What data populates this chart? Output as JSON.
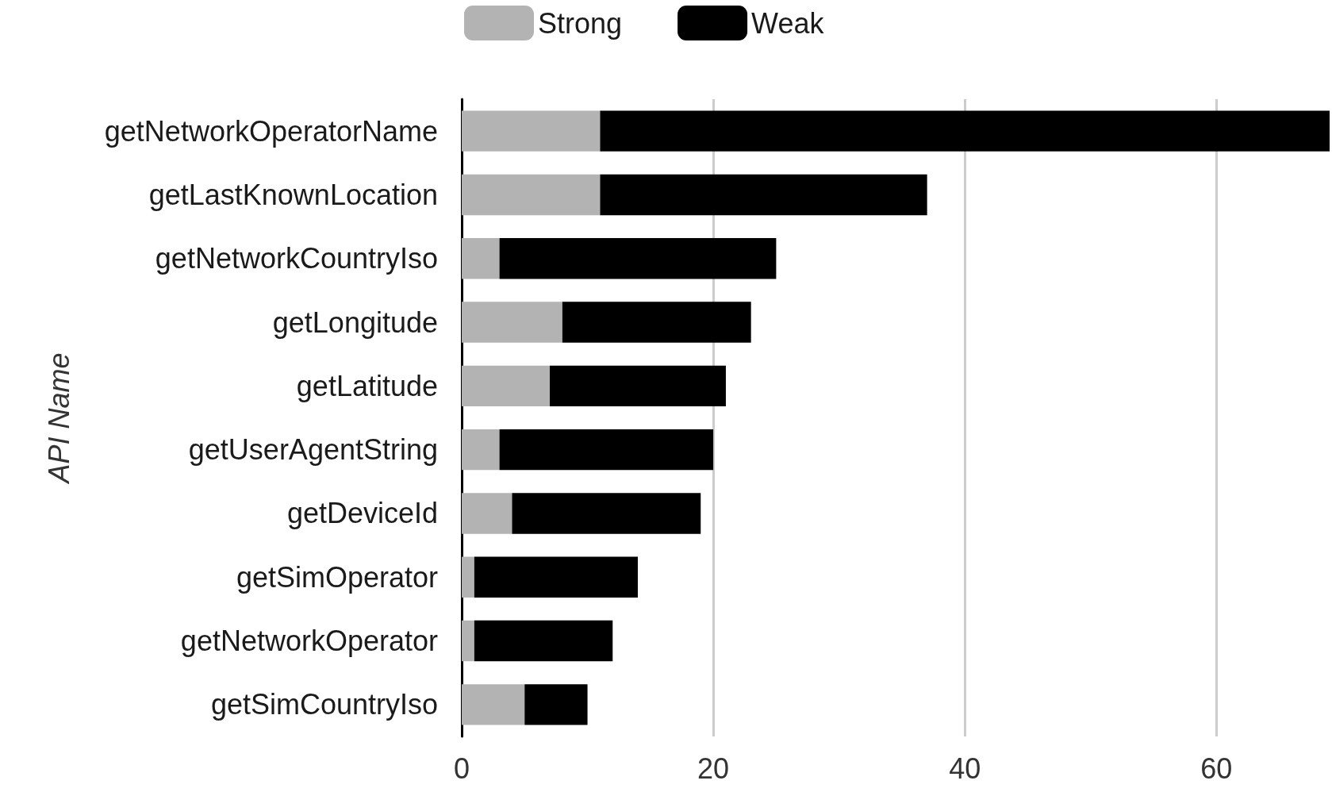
{
  "chart_data": {
    "type": "bar",
    "orientation": "horizontal",
    "stacked": true,
    "ylabel": "API Name",
    "categories": [
      "getNetworkOperatorName",
      "getLastKnownLocation",
      "getNetworkCountryIso",
      "getLongitude",
      "getLatitude",
      "getUserAgentString",
      "getDeviceId",
      "getSimOperator",
      "getNetworkOperator",
      "getSimCountryIso"
    ],
    "series": [
      {
        "name": "Strong",
        "color": "#b3b3b3",
        "values": [
          11,
          11,
          3,
          8,
          7,
          3,
          4,
          1,
          1,
          5
        ]
      },
      {
        "name": "Weak",
        "color": "#000000",
        "values": [
          58,
          26,
          22,
          15,
          14,
          17,
          15,
          13,
          11,
          5
        ]
      }
    ],
    "xlim": [
      0,
      69
    ],
    "xticks": [
      0,
      20,
      40,
      60
    ],
    "grid": "x",
    "legend": "top"
  }
}
